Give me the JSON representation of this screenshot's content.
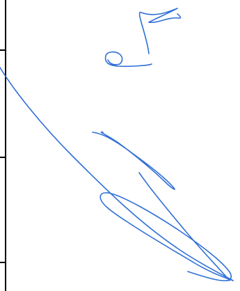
{
  "document": {
    "type": "handwritten-scan",
    "ink_color": "#2f6fd6",
    "rule_color": "#000000",
    "background_color": "#ffffff"
  },
  "handwriting": {
    "content": "9M",
    "rendered_as": "picture"
  }
}
